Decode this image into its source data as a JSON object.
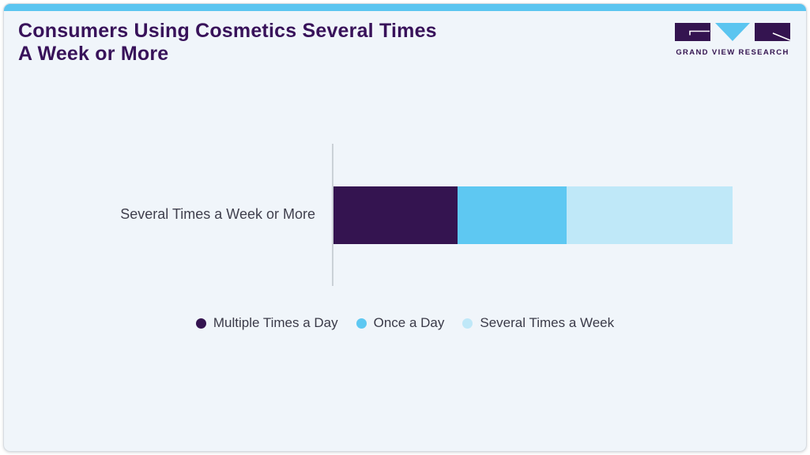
{
  "card": {
    "title_line1": "Consumers Using Cosmetics Several Times",
    "title_line2": "A Week or More",
    "accent_strip_color": "#5bc5f0",
    "background_color": "#f0f5fa",
    "title_color": "#38125a"
  },
  "logo": {
    "text": "GRAND VIEW RESEARCH",
    "dark_color": "#341450",
    "blue_color": "#5bc5f0"
  },
  "chart_data": {
    "type": "bar",
    "orientation": "horizontal",
    "stacked": true,
    "title": "Consumers Using Cosmetics Several Times A Week or More",
    "xlabel": "",
    "ylabel": "",
    "categories": [
      "Several Times a Week or More"
    ],
    "series": [
      {
        "name": "Multiple Times a Day",
        "color": "#341450",
        "values": [
          31
        ]
      },
      {
        "name": "Once a Day",
        "color": "#5ec8f2",
        "values": [
          27.5
        ]
      },
      {
        "name": "Several Times a Week",
        "color": "#bfe8f8",
        "values": [
          41.5
        ]
      }
    ],
    "value_labels_shown": false,
    "axis_line_color": "#cbd1d7",
    "legend_position": "bottom",
    "grid": false
  }
}
